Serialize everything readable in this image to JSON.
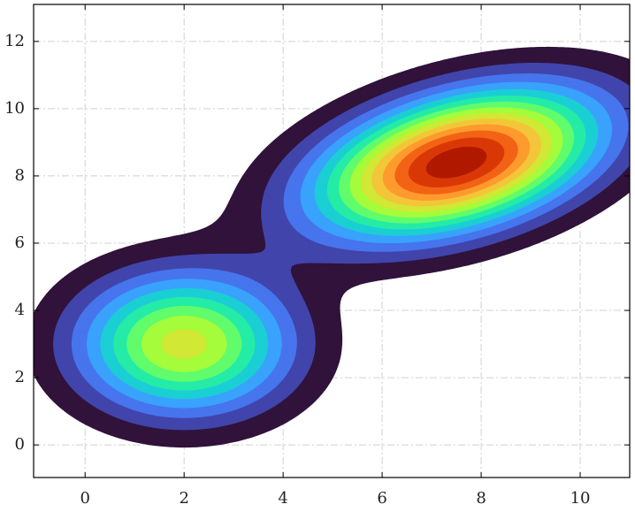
{
  "chart_data": {
    "type": "contourf",
    "xlim": [
      -1.04,
      11
    ],
    "ylim": [
      -0.97,
      13.1
    ],
    "xticks": [
      0,
      2,
      4,
      6,
      8,
      10
    ],
    "yticks": [
      0,
      2,
      4,
      6,
      8,
      10,
      12
    ],
    "grid": true,
    "components": [
      {
        "mean": [
          2,
          3
        ],
        "sigma": [
          1.5,
          1.45
        ],
        "angle": 0,
        "peak": 0.64
      },
      {
        "mean": [
          7.5,
          8.4
        ],
        "sigma": [
          2.1,
          1.25
        ],
        "angle": 28,
        "peak": 1.0
      }
    ],
    "levels": [
      0.068,
      0.136,
      0.204,
      0.272,
      0.34,
      0.408,
      0.476,
      0.544,
      0.612,
      0.68,
      0.748,
      0.816,
      0.884,
      0.952
    ],
    "colors": [
      "#30123b",
      "#4145ab",
      "#4675ed",
      "#39a2fc",
      "#1bcfd4",
      "#24eca6",
      "#61fc6c",
      "#a4fc3b",
      "#d1e834",
      "#f3c63a",
      "#fe9b2d",
      "#f36315",
      "#d93806",
      "#b11901"
    ]
  }
}
